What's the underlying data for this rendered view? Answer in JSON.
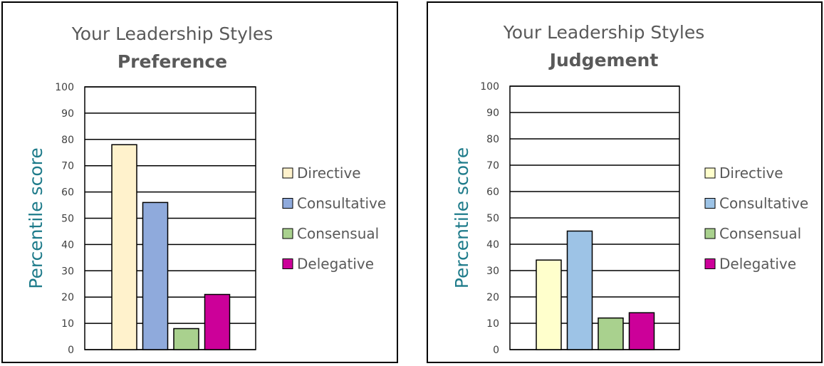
{
  "chart_data": [
    {
      "type": "bar",
      "title": "Your Leadership Styles",
      "subtitle": "Preference",
      "xlabel": "",
      "ylabel": "Percentile score",
      "ylim": [
        0,
        100
      ],
      "yticks": [
        0,
        10,
        20,
        30,
        40,
        50,
        60,
        70,
        80,
        90,
        100
      ],
      "grid": true,
      "legend": "right",
      "categories": [
        "Directive",
        "Consultative",
        "Consensual",
        "Delegative"
      ],
      "values": [
        78,
        56,
        8,
        21
      ],
      "colors": [
        "#fff2cc",
        "#8faadc",
        "#a9d18e",
        "#cc0099"
      ]
    },
    {
      "type": "bar",
      "title": "Your Leadership Styles",
      "subtitle": "Judgement",
      "xlabel": "",
      "ylabel": "Percentile score",
      "ylim": [
        0,
        100
      ],
      "yticks": [
        0,
        10,
        20,
        30,
        40,
        50,
        60,
        70,
        80,
        90,
        100
      ],
      "grid": true,
      "legend": "right",
      "categories": [
        "Directive",
        "Consultative",
        "Consensual",
        "Delegative"
      ],
      "values": [
        34,
        45,
        12,
        14
      ],
      "colors": [
        "#ffffcc",
        "#9dc3e6",
        "#a9d18e",
        "#cc0099"
      ]
    }
  ]
}
